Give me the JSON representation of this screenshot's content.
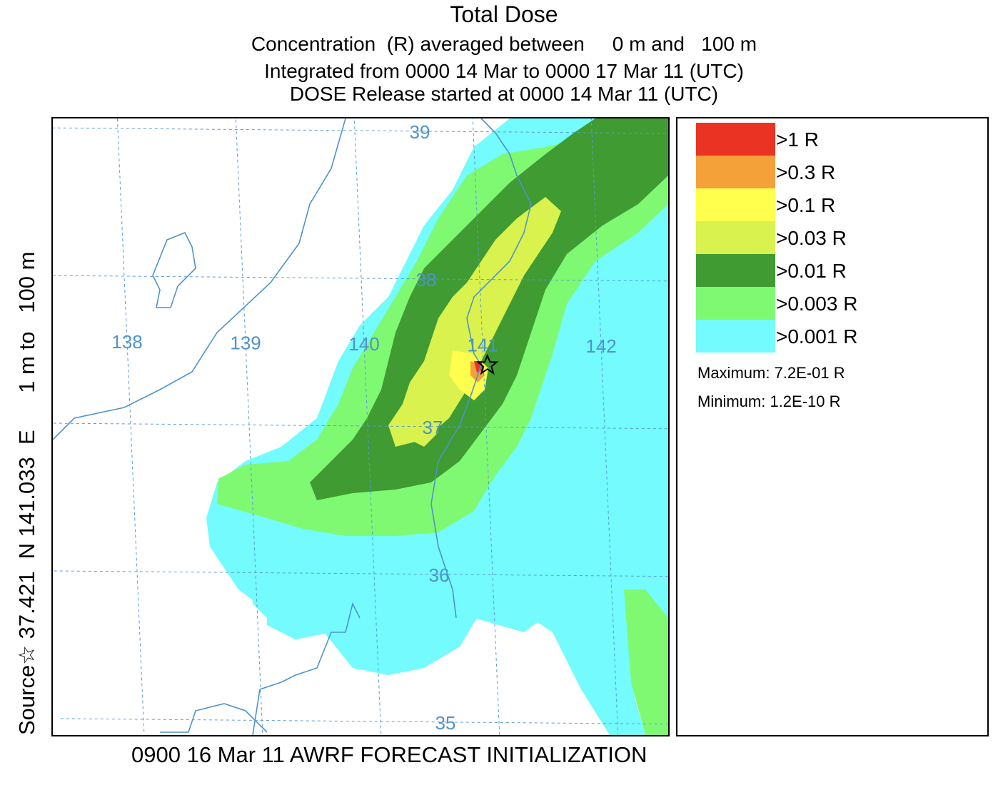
{
  "title": "Total Dose",
  "subtitle_concentration": "Concentration  (R) averaged between     0 m and   100 m",
  "subtitle_integrated": "Integrated from 0000 14 Mar to 0000 17 Mar 11 (UTC)",
  "subtitle_release": "DOSE Release started at 0000 14 Mar 11 (UTC)",
  "side_label": "Source☆ 37.421  N 141.033  E      1 m to   100 m",
  "footer": "0900 16 Mar 11 AWRF FORECAST INITIALIZATION",
  "map": {
    "longitude_labels": [
      "138",
      "139",
      "140",
      "141",
      "142"
    ],
    "latitude_labels": [
      "39",
      "38",
      "37",
      "36",
      "35"
    ],
    "source_marker_icon": "star-icon",
    "source_lat": 37.421,
    "source_lon": 141.033,
    "colors": {
      "grid": "#5b9bd5",
      "coast": "#4f93c9"
    }
  },
  "legend": {
    "items": [
      {
        "label": ">1 R",
        "color": "#ea3323"
      },
      {
        "label": ">0.3 R",
        "color": "#f4a13a"
      },
      {
        "label": ">0.1 R",
        "color": "#ffff4d"
      },
      {
        "label": ">0.03 R",
        "color": "#d9f24d"
      },
      {
        "label": ">0.01 R",
        "color": "#3f9b32"
      },
      {
        "label": ">0.003 R",
        "color": "#7ff972"
      },
      {
        "label": ">0.001 R",
        "color": "#73fbfd"
      }
    ],
    "maximum": "Maximum: 7.2E-01 R",
    "minimum": "Minimum: 1.2E-10 R"
  }
}
